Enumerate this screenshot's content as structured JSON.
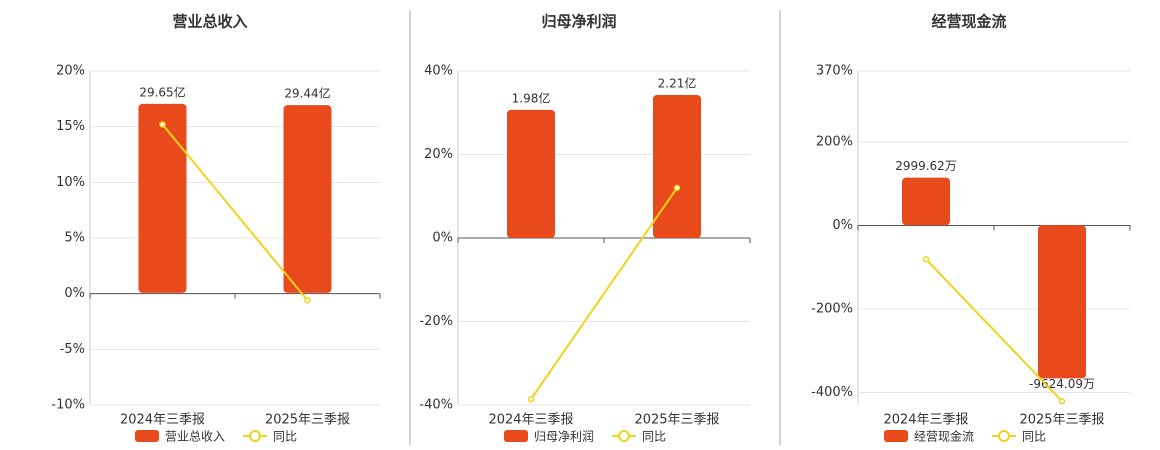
{
  "chart_data": [
    {
      "type": "combo",
      "title": "营业总收入",
      "categories": [
        "2024年三季报",
        "2025年三季报"
      ],
      "ylim": [
        -10,
        20
      ],
      "yticks": [
        {
          "value": 20,
          "label": "20%"
        },
        {
          "value": 15,
          "label": "15%"
        },
        {
          "value": 10,
          "label": "10%"
        },
        {
          "value": 5,
          "label": "5%"
        },
        {
          "value": 0,
          "label": "0%"
        },
        {
          "value": -5,
          "label": "-5%"
        },
        {
          "value": -10,
          "label": "-10%"
        }
      ],
      "y2lim": [
        -17.6,
        34.8
      ],
      "grid": true,
      "series": [
        {
          "name": "营业总收入",
          "type": "bar",
          "axis": "y2",
          "color": "#e84a1b",
          "values": [
            29.65,
            29.44
          ],
          "value_labels": [
            "29.65亿",
            "29.44亿"
          ]
        },
        {
          "name": "同比",
          "type": "line",
          "color": "#f2d21b",
          "values": [
            15.2,
            -0.6
          ]
        }
      ]
    },
    {
      "type": "combo",
      "title": "归母净利润",
      "categories": [
        "2024年三季报",
        "2025年三季报"
      ],
      "ylim": [
        -40,
        40
      ],
      "yticks": [
        {
          "value": 40,
          "label": "40%"
        },
        {
          "value": 20,
          "label": "20%"
        },
        {
          "value": 0,
          "label": "0%"
        },
        {
          "value": -20,
          "label": "-20%"
        },
        {
          "value": -40,
          "label": "-40%"
        }
      ],
      "y2lim": [
        -2.58,
        2.58
      ],
      "grid": true,
      "series": [
        {
          "name": "归母净利润",
          "type": "bar",
          "axis": "y2",
          "color": "#e84a1b",
          "values": [
            1.98,
            2.21
          ],
          "value_labels": [
            "1.98亿",
            "2.21亿"
          ]
        },
        {
          "name": "同比",
          "type": "line",
          "color": "#f2d21b",
          "values": [
            -38.6,
            12.0
          ]
        }
      ]
    },
    {
      "type": "combo",
      "title": "经营现金流",
      "categories": [
        "2024年三季报",
        "2025年三季报"
      ],
      "ylim": [
        -430,
        370
      ],
      "yticks": [
        {
          "value": 370,
          "label": "370%"
        },
        {
          "value": 200,
          "label": "200%"
        },
        {
          "value": 0,
          "label": "0%"
        },
        {
          "value": -200,
          "label": "-200%"
        },
        {
          "value": -400,
          "label": "-400%"
        }
      ],
      "y2lim": [
        -11300,
        9700
      ],
      "grid": true,
      "series": [
        {
          "name": "经营现金流",
          "type": "bar",
          "axis": "y2",
          "color": "#e84a1b",
          "values": [
            2999.62,
            -9624.09
          ],
          "value_labels": [
            "2999.62万",
            "-9624.09万"
          ]
        },
        {
          "name": "同比",
          "type": "line",
          "color": "#f2d21b",
          "values": [
            -81,
            -421
          ]
        }
      ]
    }
  ]
}
